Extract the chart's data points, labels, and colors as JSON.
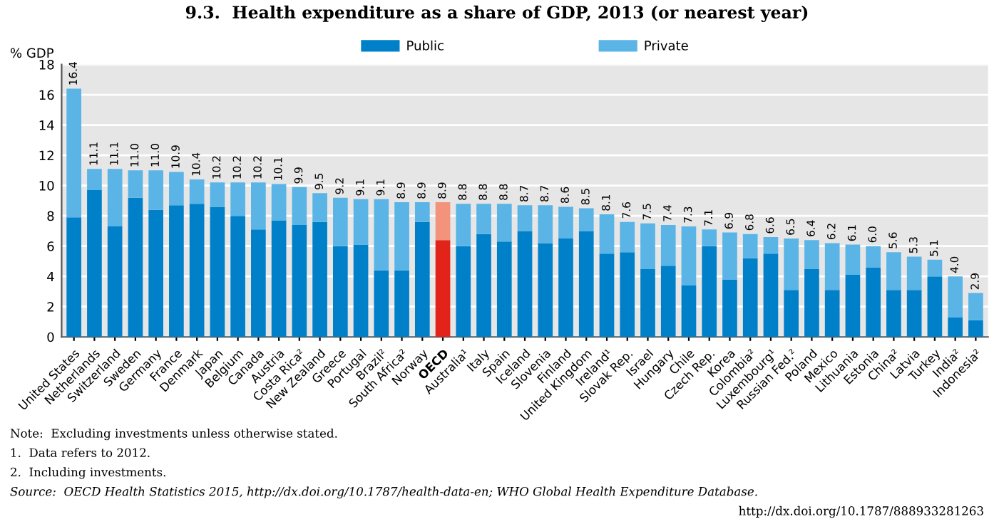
{
  "chart_data": {
    "type": "bar",
    "stacked": true,
    "title": "9.3.  Health expenditure as a share of GDP, 2013 (or nearest year)",
    "ylabel": "% GDP",
    "categories": [
      "United States",
      "Netherlands",
      "Switzerland",
      "Sweden",
      "Germany",
      "France",
      "Denmark",
      "Japan",
      "Belgium",
      "Canada",
      "Austria",
      "Costa Rica²",
      "New Zealand",
      "Greece",
      "Portugal",
      "Brazil²",
      "South Africa²",
      "Norway",
      "OECD",
      "Australia¹",
      "Italy",
      "Spain",
      "Iceland",
      "Slovenia",
      "Finland",
      "United Kingdom",
      "Ireland¹",
      "Slovak Rep.",
      "Israel",
      "Hungary",
      "Chile",
      "Czech Rep.",
      "Korea",
      "Colombia²",
      "Luxembourg¹",
      "Russian Fed.²",
      "Poland",
      "Mexico",
      "Lithuania",
      "Estonia",
      "China²",
      "Latvia",
      "Turkey",
      "India²",
      "Indonesia²"
    ],
    "series": [
      {
        "name": "Public",
        "color": "#0080c8",
        "colors": [
          "#0080c8",
          "#0080c8",
          "#0080c8",
          "#0080c8",
          "#0080c8",
          "#0080c8",
          "#0080c8",
          "#0080c8",
          "#0080c8",
          "#0080c8",
          "#0080c8",
          "#0080c8",
          "#0080c8",
          "#0080c8",
          "#0080c8",
          "#0080c8",
          "#0080c8",
          "#0080c8",
          "#e2231a",
          "#0080c8",
          "#0080c8",
          "#0080c8",
          "#0080c8",
          "#0080c8",
          "#0080c8",
          "#0080c8",
          "#0080c8",
          "#0080c8",
          "#0080c8",
          "#0080c8",
          "#0080c8",
          "#0080c8",
          "#0080c8",
          "#0080c8",
          "#0080c8",
          "#0080c8",
          "#0080c8",
          "#0080c8",
          "#0080c8",
          "#0080c8",
          "#0080c8",
          "#0080c8",
          "#0080c8",
          "#0080c8",
          "#0080c8"
        ],
        "values": [
          7.9,
          9.7,
          7.3,
          9.2,
          8.4,
          8.7,
          8.8,
          8.6,
          8.0,
          7.1,
          7.7,
          7.4,
          7.6,
          6.0,
          6.1,
          4.4,
          4.4,
          7.6,
          6.4,
          6.0,
          6.8,
          6.3,
          7.0,
          6.2,
          6.5,
          7.0,
          5.5,
          5.6,
          4.5,
          4.7,
          3.4,
          6.0,
          3.8,
          5.2,
          5.5,
          3.1,
          4.5,
          3.1,
          4.1,
          4.6,
          3.1,
          3.1,
          4.0,
          1.3,
          1.1
        ]
      },
      {
        "name": "Private",
        "color": "#5ab4e6",
        "colors": [
          "#5ab4e6",
          "#5ab4e6",
          "#5ab4e6",
          "#5ab4e6",
          "#5ab4e6",
          "#5ab4e6",
          "#5ab4e6",
          "#5ab4e6",
          "#5ab4e6",
          "#5ab4e6",
          "#5ab4e6",
          "#5ab4e6",
          "#5ab4e6",
          "#5ab4e6",
          "#5ab4e6",
          "#5ab4e6",
          "#5ab4e6",
          "#5ab4e6",
          "#f4937b",
          "#5ab4e6",
          "#5ab4e6",
          "#5ab4e6",
          "#5ab4e6",
          "#5ab4e6",
          "#5ab4e6",
          "#5ab4e6",
          "#5ab4e6",
          "#5ab4e6",
          "#5ab4e6",
          "#5ab4e6",
          "#5ab4e6",
          "#5ab4e6",
          "#5ab4e6",
          "#5ab4e6",
          "#5ab4e6",
          "#5ab4e6",
          "#5ab4e6",
          "#5ab4e6",
          "#5ab4e6",
          "#5ab4e6",
          "#5ab4e6",
          "#5ab4e6",
          "#5ab4e6",
          "#5ab4e6",
          "#5ab4e6"
        ],
        "values": [
          8.5,
          1.4,
          3.8,
          1.8,
          2.6,
          2.2,
          1.6,
          1.6,
          2.2,
          3.1,
          2.4,
          2.5,
          1.9,
          3.2,
          3.0,
          4.7,
          4.5,
          1.3,
          2.5,
          2.8,
          2.0,
          2.5,
          1.7,
          2.5,
          2.1,
          1.5,
          2.6,
          2.0,
          3.0,
          2.7,
          3.9,
          1.1,
          3.1,
          1.6,
          1.1,
          3.4,
          1.9,
          3.1,
          2.0,
          1.4,
          2.5,
          2.2,
          1.1,
          2.7,
          1.8
        ]
      }
    ],
    "totals": [
      "16.4",
      "11.1",
      "11.1",
      "11.0",
      "11.0",
      "10.9",
      "10.4",
      "10.2",
      "10.2",
      "10.2",
      "10.1",
      "9.9",
      "9.5",
      "9.2",
      "9.1",
      "9.1",
      "8.9",
      "8.9",
      "8.9",
      "8.8",
      "8.8",
      "8.8",
      "8.7",
      "8.7",
      "8.6",
      "8.5",
      "8.1",
      "7.6",
      "7.5",
      "7.4",
      "7.3",
      "7.1",
      "6.9",
      "6.8",
      "6.6",
      "6.5",
      "6.4",
      "6.2",
      "6.1",
      "6.0",
      "5.6",
      "5.3",
      "5.1",
      "4.0",
      "2.9"
    ],
    "ylim": [
      0,
      18
    ],
    "yticks": [
      0,
      2,
      4,
      6,
      8,
      10,
      12,
      14,
      16,
      18
    ],
    "grid": "y",
    "legend": "top",
    "annotations": [
      "Note:  Excluding investments unless otherwise stated.",
      "1.  Data refers to 2012.",
      "2.  Including investments.",
      "Source:  OECD Health Statistics 2015, http://dx.doi.org/10.1787/health-data-en; WHO Global Health Expenditure Database.",
      "http://dx.doi.org/10.1787/888933281263"
    ]
  }
}
